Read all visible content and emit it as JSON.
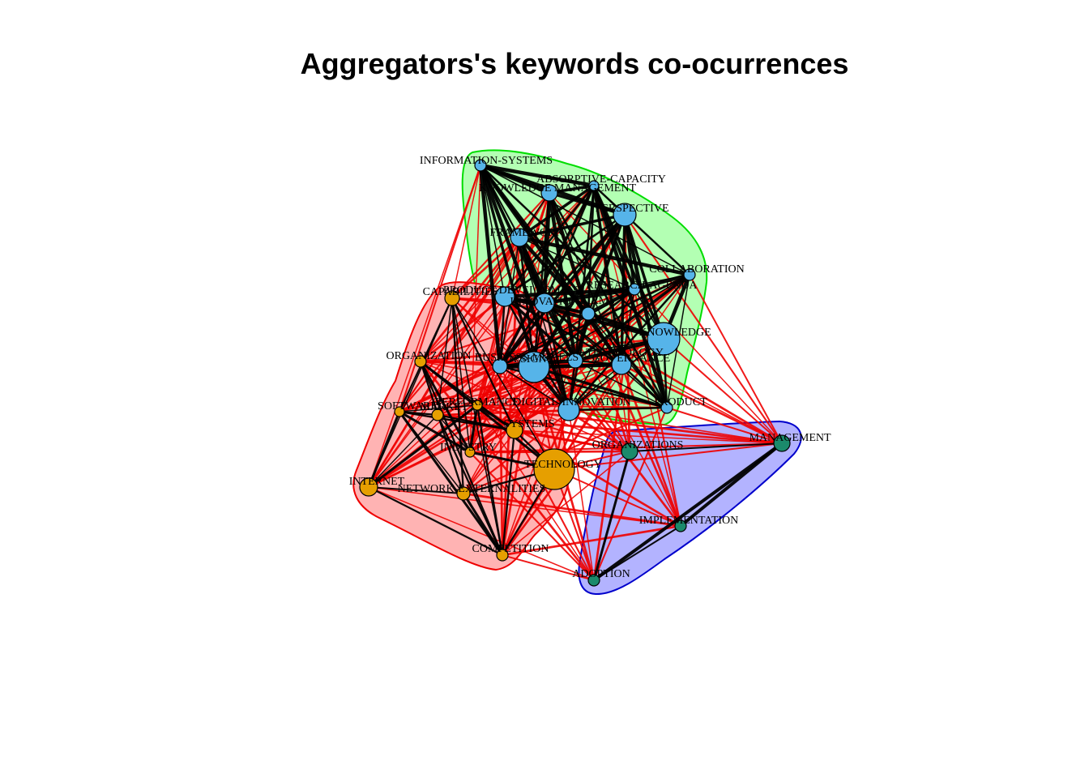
{
  "title": "Aggregators's keywords co-ocurrences",
  "colors": {
    "cluster_blue_node": "#56B4E9",
    "cluster_orange_node": "#E69F00",
    "cluster_green_node": "#1B8A6B",
    "hull_green_fill": "#B3FFB3",
    "hull_green_stroke": "#00DD00",
    "hull_red_fill": "#FFB3B3",
    "hull_red_stroke": "#EE0000",
    "hull_blue_fill": "#B3B3FF",
    "hull_blue_stroke": "#0000CC",
    "edge_within": "#000000",
    "edge_between": "#EE0000"
  },
  "nodes": [
    {
      "id": "information-systems",
      "label": "INFORMATION-SYSTEMS",
      "cluster": "blue"
    },
    {
      "id": "absorptive-capacity",
      "label": "ABSORPTIVE-CAPACITY",
      "cluster": "blue"
    },
    {
      "id": "knowledge-management",
      "label": "KNOWLEDGE MANAGEMENT",
      "cluster": "blue"
    },
    {
      "id": "perspective",
      "label": "PERSPECTIVE",
      "cluster": "blue"
    },
    {
      "id": "framework",
      "label": "FRAMEWORK",
      "cluster": "blue"
    },
    {
      "id": "collaboration",
      "label": "COLLABORATION",
      "cluster": "blue"
    },
    {
      "id": "research-agenda",
      "label": "RESEARCH-AGENDA",
      "cluster": "blue"
    },
    {
      "id": "product-development",
      "label": "PRODUCT-DEVELOPMENT",
      "cluster": "blue"
    },
    {
      "id": "innovation",
      "label": "INNOVATION",
      "cluster": "blue"
    },
    {
      "id": "firms",
      "label": "FIRMS",
      "cluster": "blue"
    },
    {
      "id": "knowledge",
      "label": "KNOWLEDGE",
      "cluster": "blue"
    },
    {
      "id": "business-models",
      "label": "BUSINESS-MODELS",
      "cluster": "blue"
    },
    {
      "id": "design",
      "label": "DESIGN",
      "cluster": "blue"
    },
    {
      "id": "technology-dynamics",
      "label": "TECHNOLOGY",
      "cluster": "blue"
    },
    {
      "id": "governance",
      "label": "GOVERNANCE",
      "cluster": "blue"
    },
    {
      "id": "digital-innovation",
      "label": "DIGITAL-INNOVATION",
      "cluster": "blue"
    },
    {
      "id": "product",
      "label": "PRODUCT",
      "cluster": "blue"
    },
    {
      "id": "capabilities",
      "label": "CAPABILITIES",
      "cluster": "orange"
    },
    {
      "id": "organization",
      "label": "ORGANIZATION",
      "cluster": "orange"
    },
    {
      "id": "performance",
      "label": "PERFORMANCE",
      "cluster": "orange"
    },
    {
      "id": "software",
      "label": "SOFTWARE",
      "cluster": "orange"
    },
    {
      "id": "market",
      "label": "MARKET",
      "cluster": "orange"
    },
    {
      "id": "systems",
      "label": "SYSTEMS",
      "cluster": "orange"
    },
    {
      "id": "industry",
      "label": "INDUSTRY",
      "cluster": "orange"
    },
    {
      "id": "technology",
      "label": "TECHNOLOGY",
      "cluster": "orange"
    },
    {
      "id": "internet",
      "label": "INTERNET",
      "cluster": "orange"
    },
    {
      "id": "network-externalities",
      "label": "NETWORK-EXTERNALITIES",
      "cluster": "orange"
    },
    {
      "id": "competition",
      "label": "COMPETITION",
      "cluster": "orange"
    },
    {
      "id": "organizations",
      "label": "ORGANIZATIONS",
      "cluster": "green"
    },
    {
      "id": "management",
      "label": "MANAGEMENT",
      "cluster": "green"
    },
    {
      "id": "implementation",
      "label": "IMPLEMENTATION",
      "cluster": "green"
    },
    {
      "id": "adoption",
      "label": "ADOPTION",
      "cluster": "green"
    }
  ]
}
